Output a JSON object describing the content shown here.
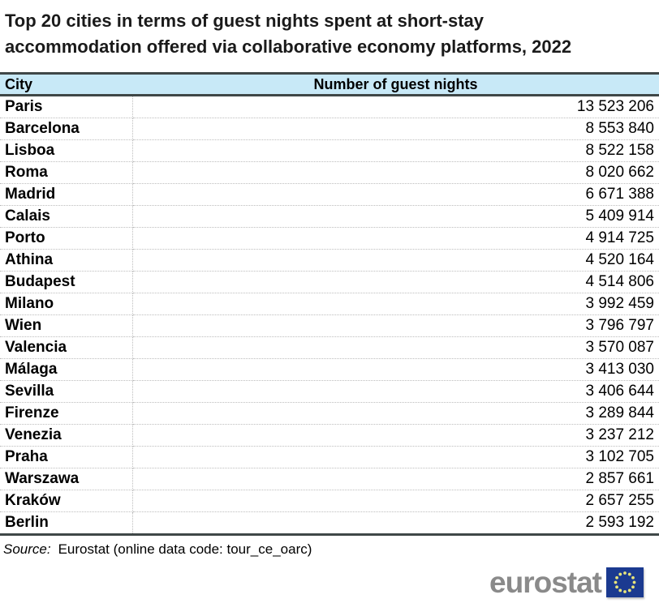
{
  "title_lines": [
    "Top 20 cities in terms of guest nights spent at short-stay",
    "accommodation offered via collaborative economy platforms, 2022"
  ],
  "table": {
    "columns": [
      "City",
      "Number of guest nights"
    ],
    "rows": [
      {
        "city": "Paris",
        "value": "13 523 206"
      },
      {
        "city": "Barcelona",
        "value": "8 553 840"
      },
      {
        "city": "Lisboa",
        "value": "8 522 158"
      },
      {
        "city": "Roma",
        "value": "8 020 662"
      },
      {
        "city": "Madrid",
        "value": "6 671 388"
      },
      {
        "city": "Calais",
        "value": "5 409 914"
      },
      {
        "city": "Porto",
        "value": "4 914 725"
      },
      {
        "city": "Athina",
        "value": "4 520 164"
      },
      {
        "city": "Budapest",
        "value": "4 514 806"
      },
      {
        "city": "Milano",
        "value": "3 992 459"
      },
      {
        "city": "Wien",
        "value": "3 796 797"
      },
      {
        "city": "Valencia",
        "value": "3 570 087"
      },
      {
        "city": "Málaga",
        "value": "3 413 030"
      },
      {
        "city": "Sevilla",
        "value": "3 406 644"
      },
      {
        "city": "Firenze",
        "value": "3 289 844"
      },
      {
        "city": "Venezia",
        "value": "3 237 212"
      },
      {
        "city": "Praha",
        "value": "3 102 705"
      },
      {
        "city": "Warszawa",
        "value": "2 857 661"
      },
      {
        "city": "Kraków",
        "value": "2 657 255"
      },
      {
        "city": "Berlin",
        "value": "2 593 192"
      }
    ]
  },
  "source": {
    "label": "Source:",
    "text": "Eurostat (online data code: tour_ce_oarc)"
  },
  "logo": {
    "text": "eurostat"
  },
  "colors": {
    "header-bg": "#c8e9f7",
    "border-dark": "#3f4747",
    "dotted": "#bdbdbd",
    "title-color": "#1a1a1a",
    "logo-gray": "#8a8a8a",
    "flag-blue": "#1b3a90",
    "flag-star": "#e8e47a"
  },
  "chart_data": {
    "type": "table",
    "title": "Top 20 cities in terms of guest nights spent at short-stay accommodation offered via collaborative economy platforms, 2022",
    "columns": [
      "City",
      "Number of guest nights"
    ],
    "categories": [
      "Paris",
      "Barcelona",
      "Lisboa",
      "Roma",
      "Madrid",
      "Calais",
      "Porto",
      "Athina",
      "Budapest",
      "Milano",
      "Wien",
      "Valencia",
      "Málaga",
      "Sevilla",
      "Firenze",
      "Venezia",
      "Praha",
      "Warszawa",
      "Kraków",
      "Berlin"
    ],
    "values": [
      13523206,
      8553840,
      8522158,
      8020662,
      6671388,
      5409914,
      4914725,
      4520164,
      4514806,
      3992459,
      3796797,
      3570087,
      3413030,
      3406644,
      3289844,
      3237212,
      3102705,
      2857661,
      2657255,
      2593192
    ],
    "source": "Eurostat (online data code: tour_ce_oarc)"
  }
}
